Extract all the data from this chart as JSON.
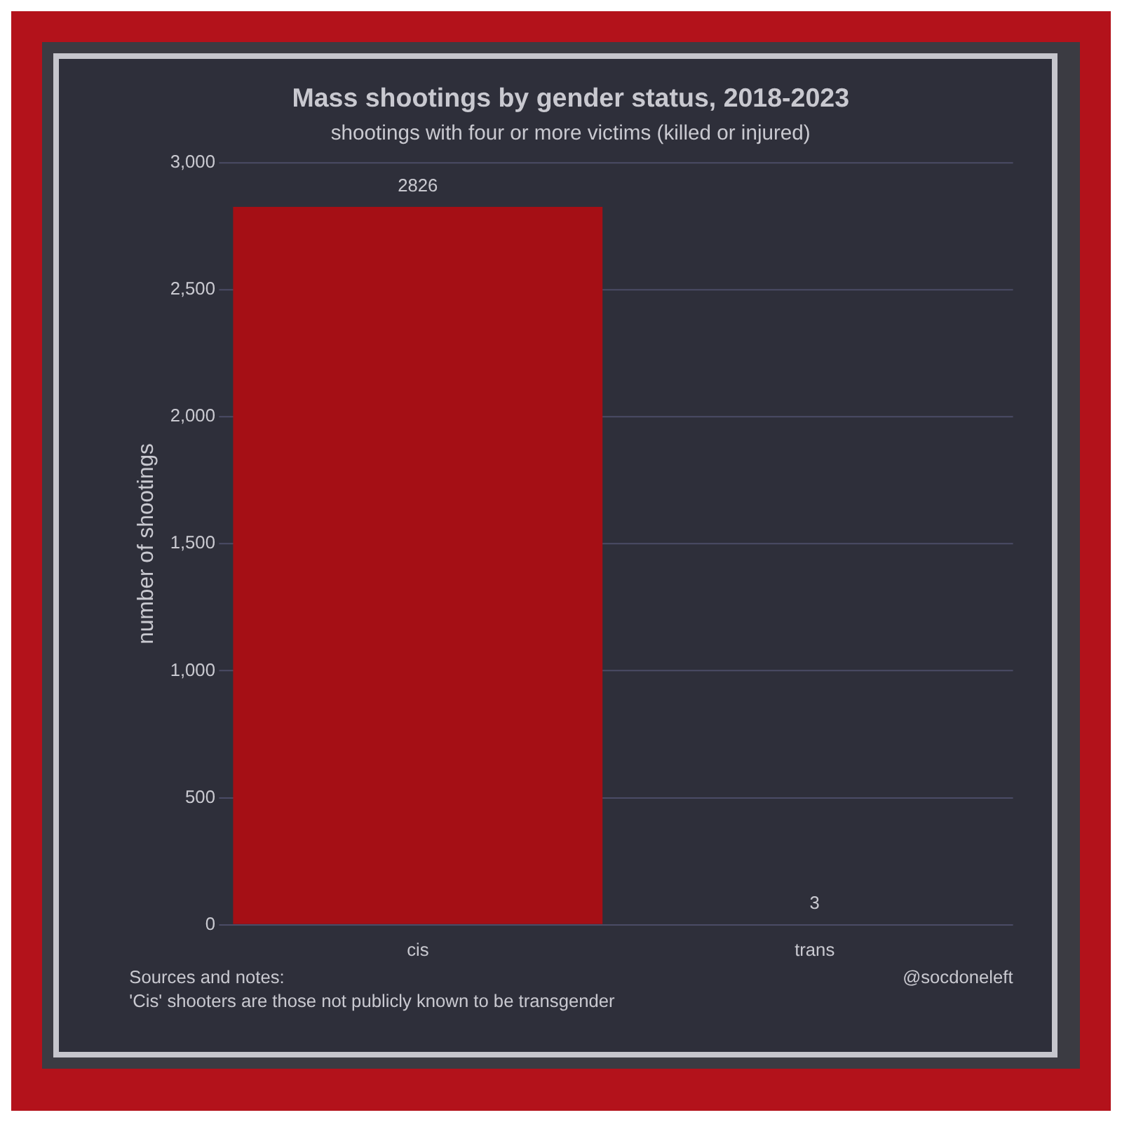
{
  "chart_data": {
    "type": "bar",
    "title": "Mass shootings by gender status, 2018-2023",
    "subtitle": "shootings with four or more victims (killed or injured)",
    "ylabel": "number of shootings",
    "categories": [
      "cis",
      "trans"
    ],
    "values": [
      2826,
      3
    ],
    "color": "#a50f15",
    "ylim": [
      0,
      3000
    ],
    "yticks": [
      0,
      500,
      {
        "value": 1000,
        "label": "1,000"
      },
      {
        "value": 1500,
        "label": "1,500"
      },
      {
        "value": 2000,
        "label": "2,000"
      },
      {
        "value": 2500,
        "label": "2,500"
      },
      {
        "value": 3000,
        "label": "3,000"
      }
    ],
    "grid": "y",
    "legend": false,
    "data_labels": true,
    "annotations": [
      "Sources and notes:",
      "'Cis' shooters are those not publicly known to be transgender",
      "@socdoneleft"
    ]
  }
}
